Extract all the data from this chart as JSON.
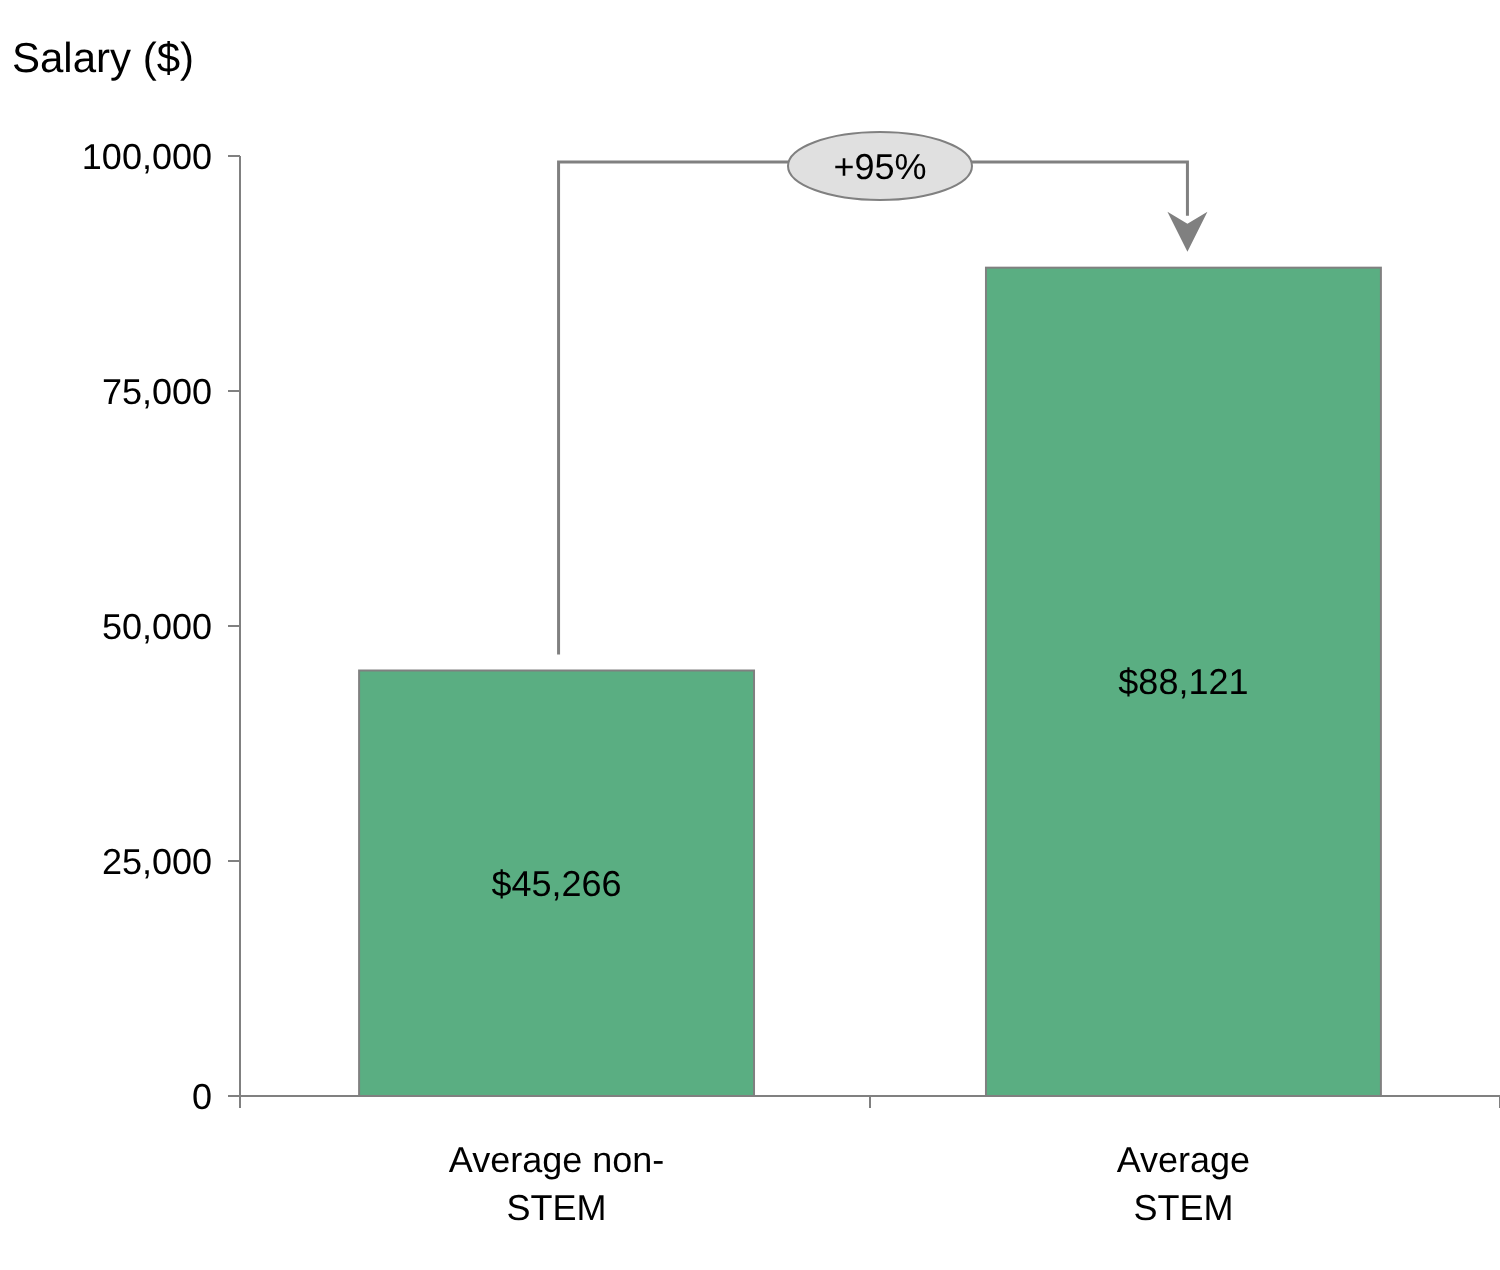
{
  "chart_data": {
    "type": "bar",
    "ylabel": "Salary ($)",
    "categories": [
      "Average non-STEM",
      "Average STEM"
    ],
    "values": [
      45266,
      88121
    ],
    "value_labels": [
      "$45,266",
      "$88,121"
    ],
    "color": "#5aae82",
    "ylim": [
      0,
      100000
    ],
    "yticks": [
      0,
      {
        "value": 25000,
        "label": "25,000"
      },
      {
        "value": 50000,
        "label": "50,000"
      },
      {
        "value": 75000,
        "label": "75,000"
      },
      {
        "value": 100000,
        "label": "100,000"
      }
    ],
    "grid": false,
    "annotations": [
      "+95%"
    ]
  }
}
